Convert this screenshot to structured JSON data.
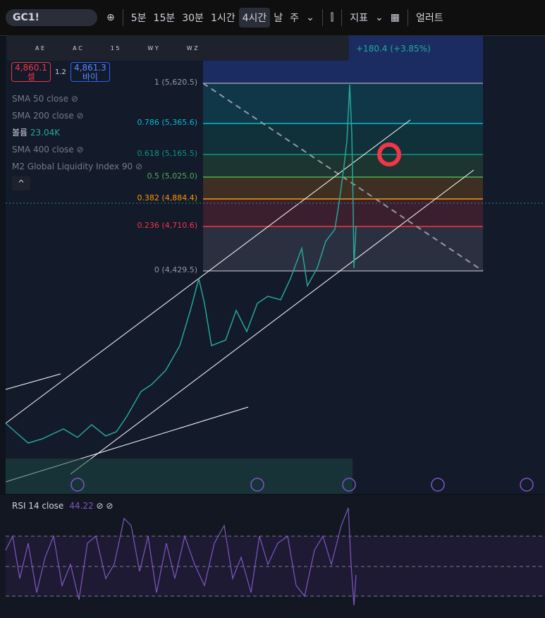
{
  "toolbar": {
    "symbol": "GC1!",
    "intervals": [
      "5분",
      "15분",
      "30분",
      "1시간",
      "4시간",
      "날",
      "주"
    ],
    "indicators": "지표",
    "alerts": "얼러트"
  },
  "drawing_toolbar": {
    "labels": [
      "A E",
      "A C",
      "1 5",
      "W Y",
      "W Z"
    ]
  },
  "header": {
    "change": "+180.4 (+3.85%)"
  },
  "trade": {
    "sell_price": "4,860.1",
    "sell": "셀",
    "spread": "1.2",
    "buy_price": "4,861.3",
    "buy": "바이"
  },
  "legend": [
    {
      "name": "SMA 50 close"
    },
    {
      "name": "SMA 200 close"
    },
    {
      "name": "볼륨",
      "value": "23.04K"
    },
    {
      "name": "SMA 400 close"
    },
    {
      "name": "M2 Global Liquidity Index 90"
    }
  ],
  "fib_levels": [
    {
      "label": "1 (5,620.5)",
      "color": "#9598a1"
    },
    {
      "label": "0.786 (5,365.6)",
      "color": "#00bcd4"
    },
    {
      "label": "0.618 (5,165.5)",
      "color": "#089981"
    },
    {
      "label": "0.5 (5,025.0)",
      "color": "#4caf50"
    },
    {
      "label": "0.382 (4,884.4)",
      "color": "#ff9800"
    },
    {
      "label": "0.236 (4,710.6)",
      "color": "#f23645"
    },
    {
      "label": "0 (4,429.5)",
      "color": "#9598a1"
    }
  ],
  "rsi": {
    "title": "RSI 14 close",
    "value": "44.22"
  }
}
